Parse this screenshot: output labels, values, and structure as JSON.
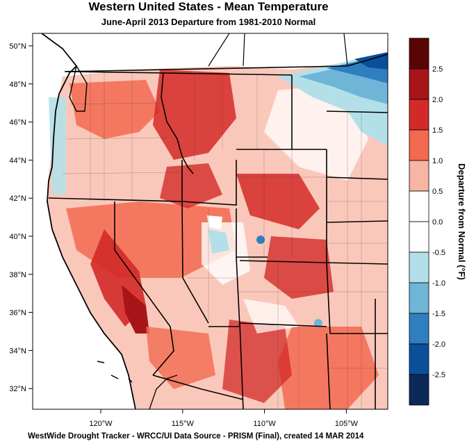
{
  "title": "Western United States - Mean Temperature",
  "subtitle": "June-April 2013  Departure from 1981-2010 Normal",
  "footer": "WestWide Drought Tracker - WRCC/UI  Data Source - PRISM (Final), created 14 MAR 2014",
  "colorbar": {
    "title": "Departure from Normal (°F)",
    "levels": [
      "2.5",
      "2.0",
      "1.5",
      "1.0",
      "0.5",
      "0.0",
      "-0.5",
      "-1.0",
      "-1.5",
      "-2.0",
      "-2.5"
    ],
    "colors": [
      "#5a0505",
      "#a81518",
      "#d32a28",
      "#f26a50",
      "#f8b5a3",
      "#ffffff",
      "#ffffff",
      "#b3e0e8",
      "#6fb5d8",
      "#2f7ec0",
      "#0a4f9a",
      "#0b2a5a"
    ]
  },
  "latitudes": [
    "50°N",
    "48°N",
    "46°N",
    "44°N",
    "42°N",
    "40°N",
    "38°N",
    "36°N",
    "34°N",
    "32°N"
  ],
  "longitudes": [
    "120°W",
    "115°W",
    "110°W",
    "105°W"
  ]
}
